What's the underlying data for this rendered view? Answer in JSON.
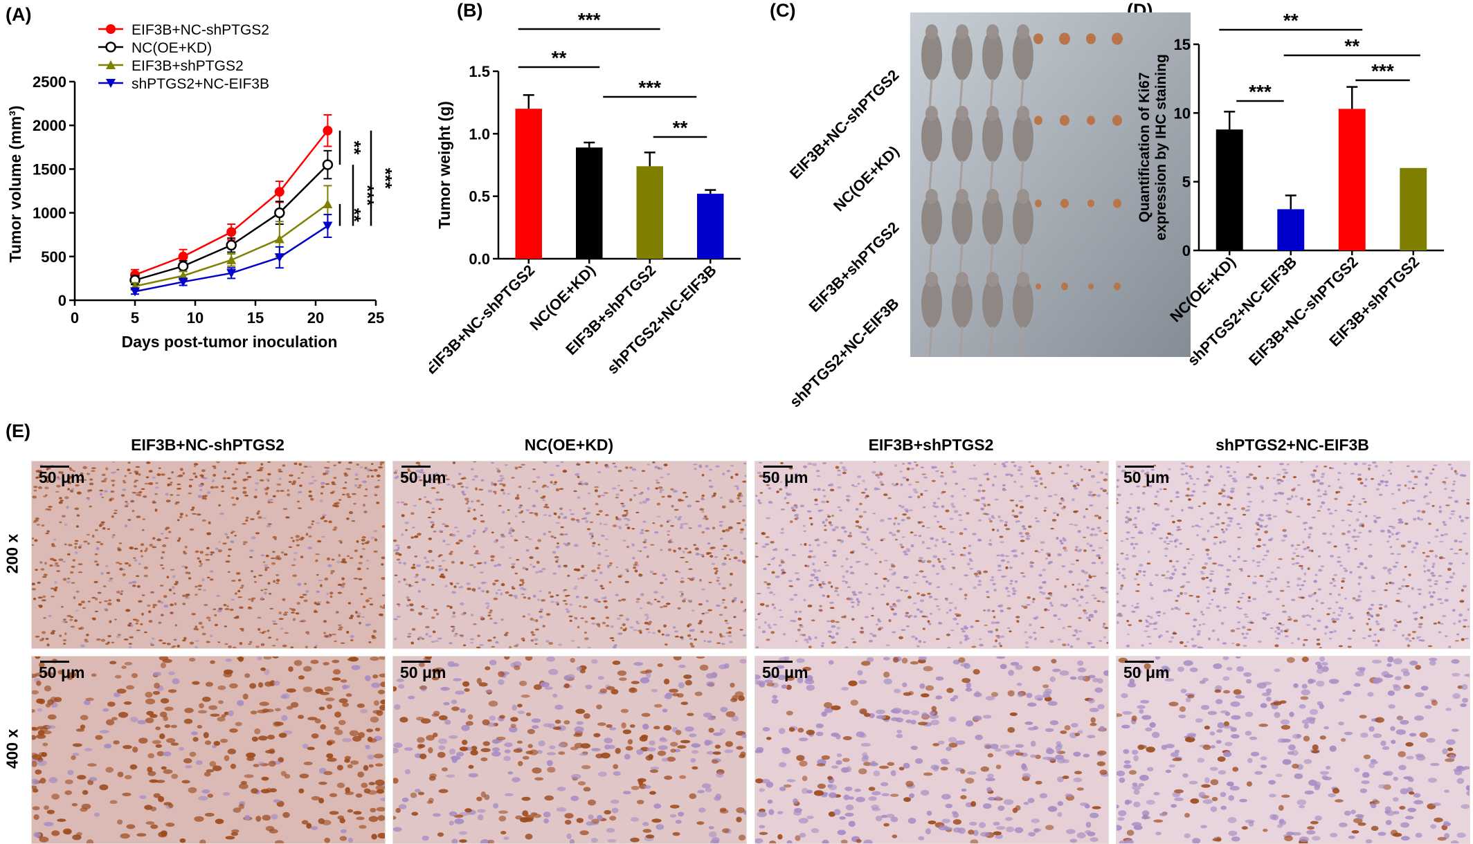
{
  "panels": {
    "a": "(A)",
    "b": "(B)",
    "c": "(C)",
    "d": "(D)",
    "e": "(E)"
  },
  "colors": {
    "red": "#ff0000",
    "black": "#000000",
    "olive": "#808000",
    "blue": "#0000cc"
  },
  "chart_data": [
    {
      "type": "line",
      "ylabel": "Tumor volume (mm³)",
      "xlabel": "Days post-tumor inoculation",
      "xlim": [
        0,
        25
      ],
      "ylim": [
        0,
        2500
      ],
      "xticks": [
        "0",
        "5",
        "10",
        "15",
        "20",
        "25"
      ],
      "yticks": [
        "0",
        "500",
        "1000",
        "1500",
        "2000",
        "2500"
      ],
      "x": [
        5,
        9,
        13,
        17,
        21
      ],
      "legend_position": "top-left",
      "series": [
        {
          "name": "EIF3B+NC-shPTGS2",
          "values": [
            290,
            500,
            780,
            1240,
            1940
          ],
          "errors": [
            60,
            80,
            90,
            120,
            180
          ],
          "color": "#ff0000",
          "marker": "filled-circle"
        },
        {
          "name": "NC(OE+KD)",
          "values": [
            230,
            390,
            630,
            1000,
            1550
          ],
          "errors": [
            50,
            60,
            80,
            130,
            160
          ],
          "color": "#000000",
          "marker": "open-circle"
        },
        {
          "name": "EIF3B+shPTGS2",
          "values": [
            160,
            280,
            460,
            700,
            1100
          ],
          "errors": [
            40,
            50,
            70,
            200,
            210
          ],
          "color": "#808000",
          "marker": "triangle-up"
        },
        {
          "name": "shPTGS2+NC-EIF3B",
          "values": [
            100,
            210,
            310,
            490,
            850
          ],
          "errors": [
            30,
            40,
            60,
            120,
            130
          ],
          "color": "#0000cc",
          "marker": "triangle-down"
        }
      ],
      "significance": [
        "**",
        "**",
        "***",
        "***"
      ]
    },
    {
      "type": "bar",
      "ylabel": "Tumor weight (g)",
      "ylim": [
        0,
        1.5
      ],
      "yticks": [
        "0.0",
        "0.5",
        "1.0",
        "1.5"
      ],
      "categories": [
        "EIF3B+NC-shPTGS2",
        "NC(OE+KD)",
        "EIF3B+shPTGS2",
        "shPTGS2+NC-EIF3B"
      ],
      "values": [
        1.2,
        0.89,
        0.74,
        0.52
      ],
      "errors": [
        0.11,
        0.04,
        0.11,
        0.03
      ],
      "colors": [
        "#ff0000",
        "#000000",
        "#808000",
        "#0000cc"
      ],
      "significance": [
        "***",
        "**",
        "***",
        "**"
      ]
    },
    {
      "type": "bar",
      "ylabel": "Quantification of Ki67 expression by IHC staining",
      "ylim": [
        0,
        15
      ],
      "yticks": [
        "0",
        "5",
        "10",
        "15"
      ],
      "categories": [
        "NC(OE+KD)",
        "shPTGS2+NC-EIF3B",
        "EIF3B+NC-shPTGS2",
        "EIF3B+shPTGS2"
      ],
      "values": [
        8.8,
        3.0,
        10.3,
        6.0
      ],
      "errors": [
        1.3,
        1.0,
        1.6,
        0.0
      ],
      "colors": [
        "#000000",
        "#0000cc",
        "#ff0000",
        "#808000"
      ],
      "significance": [
        "**",
        "**",
        "***",
        "***"
      ]
    }
  ],
  "photo": {
    "groups": [
      "EIF3B+NC-shPTGS2",
      "NC(OE+KD)",
      "EIF3B+shPTGS2",
      "shPTGS2+NC-EIF3B"
    ]
  },
  "ihc": {
    "columns": [
      "EIF3B+NC-shPTGS2",
      "NC(OE+KD)",
      "EIF3B+shPTGS2",
      "shPTGS2+NC-EIF3B"
    ],
    "rows": [
      "200 x",
      "400 x"
    ],
    "scale_label": "50 μm",
    "stain_level": [
      0.85,
      0.55,
      0.3,
      0.2
    ]
  }
}
